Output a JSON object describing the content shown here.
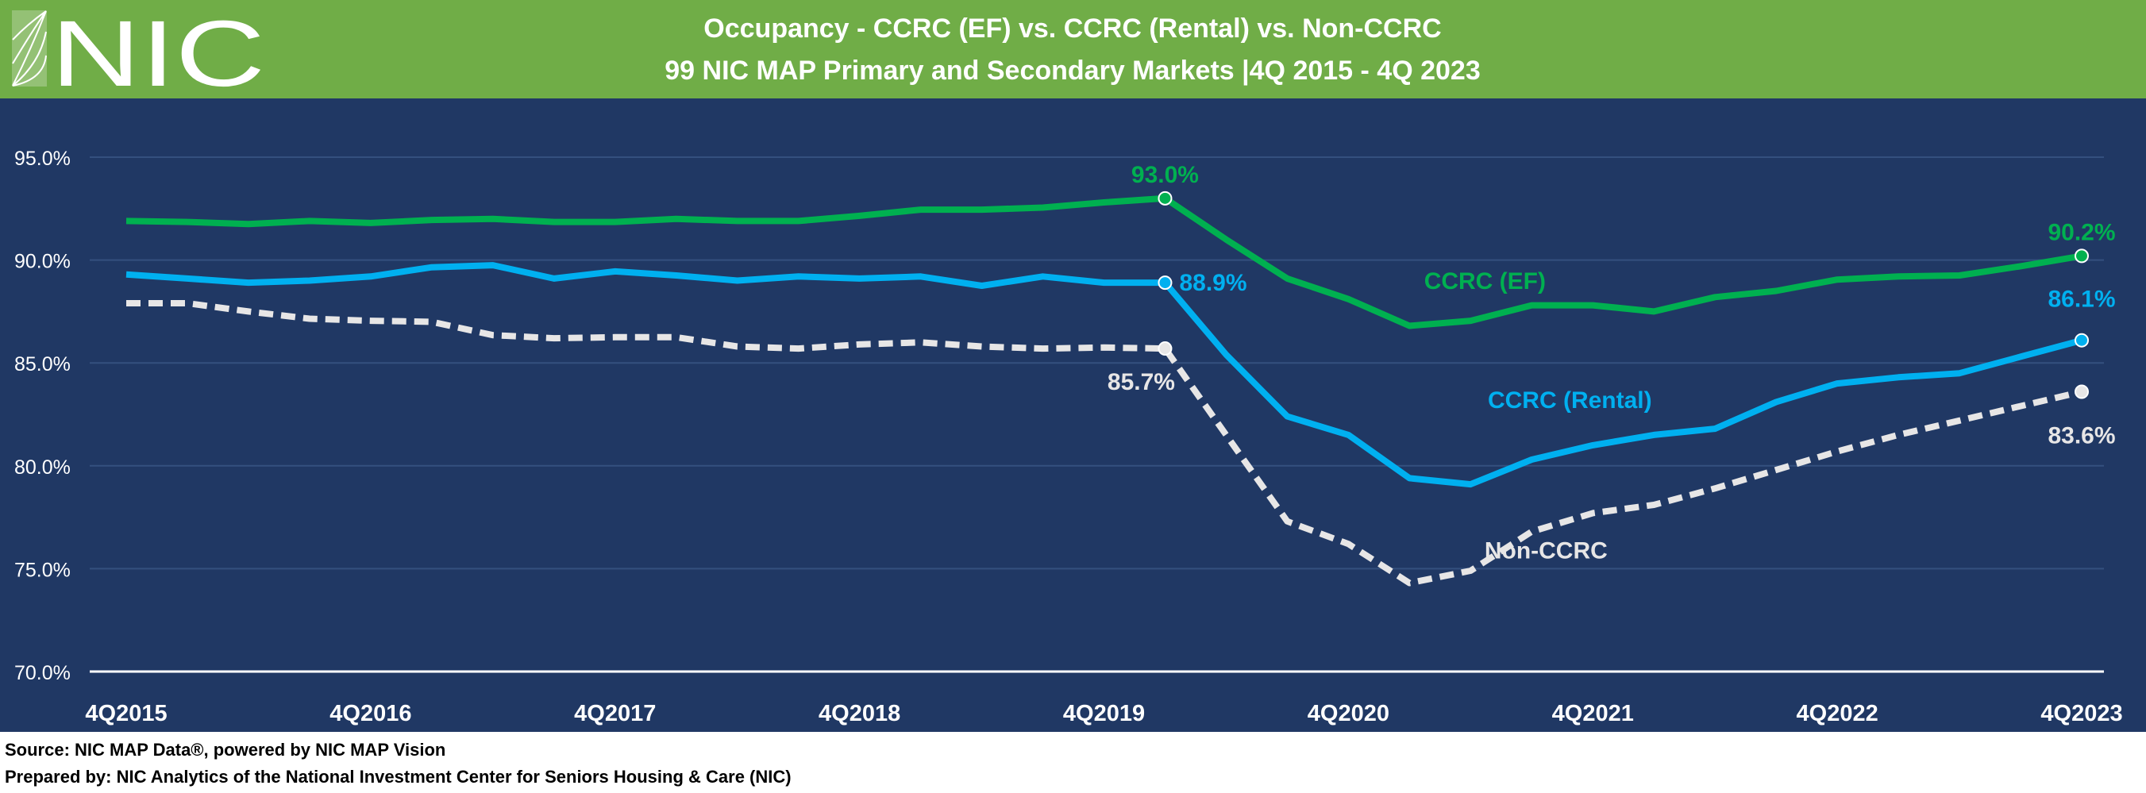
{
  "logo": {
    "text": "NIC"
  },
  "colors": {
    "header": "#70AD47",
    "background": "#203864",
    "ef": "#00B050",
    "rental": "#00B0F0",
    "non_ccrc": "#E7E6E6",
    "grid": "#34507E"
  },
  "footer": {
    "source": "Source: NIC MAP Data®, powered by NIC MAP Vision",
    "prepared": "Prepared by: NIC Analytics of the National Investment Center for Seniors Housing & Care (NIC)"
  },
  "chart_data": {
    "type": "line",
    "title": "Occupancy - CCRC (EF) vs. CCRC (Rental) vs. Non-CCRC",
    "subtitle": "99 NIC MAP Primary and Secondary Markets |4Q 2015 - 4Q 2023",
    "ylim": [
      70,
      95
    ],
    "yticks": [
      "70.0%",
      "75.0%",
      "80.0%",
      "85.0%",
      "90.0%",
      "95.0%"
    ],
    "xtick_labels": [
      "4Q2015",
      "4Q2016",
      "4Q2017",
      "4Q2018",
      "4Q2019",
      "4Q2020",
      "4Q2021",
      "4Q2022",
      "4Q2023"
    ],
    "grid": true,
    "x": [
      "4Q2015",
      "1Q2016",
      "2Q2016",
      "3Q2016",
      "4Q2016",
      "1Q2017",
      "2Q2017",
      "3Q2017",
      "4Q2017",
      "1Q2018",
      "2Q2018",
      "3Q2018",
      "4Q2018",
      "1Q2019",
      "2Q2019",
      "3Q2019",
      "4Q2019",
      "1Q2020",
      "2Q2020",
      "3Q2020",
      "4Q2020",
      "1Q2021",
      "2Q2021",
      "3Q2021",
      "4Q2021",
      "1Q2022",
      "2Q2022",
      "3Q2022",
      "4Q2022",
      "1Q2023",
      "2Q2023",
      "3Q2023",
      "4Q2023"
    ],
    "series": [
      {
        "name": "CCRC (EF)",
        "color": "#00B050",
        "dashed": false,
        "values": [
          91.9,
          91.85,
          91.75,
          91.9,
          91.8,
          91.95,
          92.0,
          91.85,
          91.85,
          92.0,
          91.9,
          91.9,
          92.15,
          92.45,
          92.45,
          92.55,
          92.8,
          93.0,
          91.0,
          89.1,
          88.1,
          86.8,
          87.05,
          87.8,
          87.8,
          87.5,
          88.2,
          88.5,
          89.05,
          89.2,
          89.25,
          89.7,
          90.2
        ],
        "labels": [
          {
            "index": 17,
            "text": "93.0%"
          },
          {
            "index": 32,
            "text": "90.2%"
          }
        ]
      },
      {
        "name": "CCRC (Rental)",
        "color": "#00B0F0",
        "dashed": false,
        "values": [
          89.3,
          89.1,
          88.9,
          89.0,
          89.2,
          89.65,
          89.75,
          89.1,
          89.45,
          89.25,
          89.0,
          89.2,
          89.1,
          89.2,
          88.75,
          89.2,
          88.9,
          88.9,
          85.4,
          82.4,
          81.5,
          79.4,
          79.1,
          80.3,
          81.0,
          81.5,
          81.8,
          83.1,
          84.0,
          84.3,
          84.5,
          85.3,
          86.1
        ],
        "labels": [
          {
            "index": 17,
            "text": "88.9%"
          },
          {
            "index": 32,
            "text": "86.1%"
          }
        ]
      },
      {
        "name": "Non-CCRC",
        "color": "#E7E6E6",
        "dashed": true,
        "values": [
          87.9,
          87.9,
          87.5,
          87.15,
          87.05,
          87.0,
          86.35,
          86.2,
          86.25,
          86.25,
          85.8,
          85.7,
          85.9,
          86.0,
          85.8,
          85.7,
          85.75,
          85.7,
          81.5,
          77.3,
          76.2,
          74.3,
          74.9,
          76.8,
          77.7,
          78.1,
          78.9,
          79.8,
          80.7,
          81.5,
          82.2,
          82.9,
          83.6
        ],
        "labels": [
          {
            "index": 17,
            "text": "85.7%"
          },
          {
            "index": 32,
            "text": "83.6%"
          }
        ]
      }
    ]
  }
}
